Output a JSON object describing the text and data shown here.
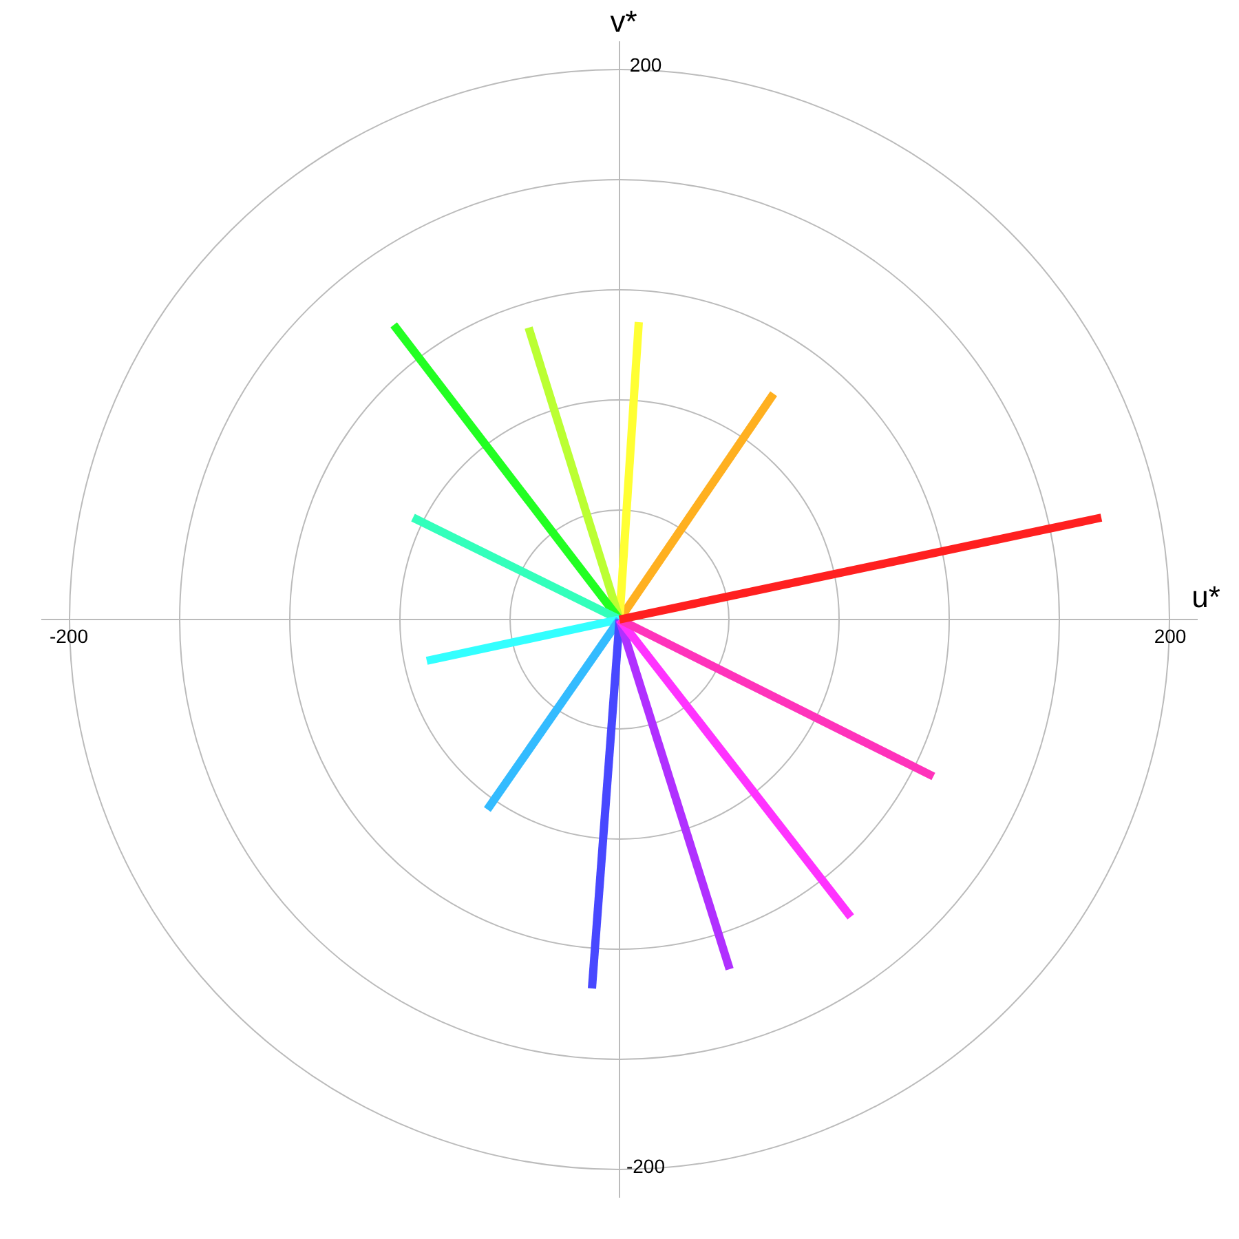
{
  "chart_data": {
    "type": "line",
    "xlabel": "u*",
    "ylabel": "v*",
    "xlim": [
      -210,
      210
    ],
    "ylim": [
      -210,
      210
    ],
    "xticks": [
      -200,
      200
    ],
    "yticks": [
      -200,
      200
    ],
    "legend": false,
    "marker": "none",
    "line_style": "solid",
    "series": [
      {
        "color": "#ff2020",
        "x": [
          0,
          175
        ],
        "values": [
          0,
          37
        ]
      },
      {
        "color": "#ff33bb",
        "x": [
          0,
          114
        ],
        "values": [
          0,
          -57
        ]
      },
      {
        "color": "#ff33ff",
        "x": [
          0,
          84
        ],
        "values": [
          0,
          -108
        ]
      },
      {
        "color": "#b030ff",
        "x": [
          0,
          40
        ],
        "values": [
          0,
          -127
        ]
      },
      {
        "color": "#4848ff",
        "x": [
          0,
          -10
        ],
        "values": [
          0,
          -134
        ]
      },
      {
        "color": "#33bbff",
        "x": [
          0,
          -48
        ],
        "values": [
          0,
          -69
        ]
      },
      {
        "color": "#33ffff",
        "x": [
          0,
          -70
        ],
        "values": [
          0,
          -15
        ]
      },
      {
        "color": "#33ffbb",
        "x": [
          0,
          -75
        ],
        "values": [
          0,
          37
        ]
      },
      {
        "color": "#22ff22",
        "x": [
          0,
          -82
        ],
        "values": [
          0,
          107
        ]
      },
      {
        "color": "#bbff33",
        "x": [
          0,
          -33
        ],
        "values": [
          0,
          106
        ]
      },
      {
        "color": "#ffff33",
        "x": [
          0,
          7
        ],
        "values": [
          0,
          108
        ]
      },
      {
        "color": "#ffb020",
        "x": [
          0,
          56
        ],
        "values": [
          0,
          82
        ]
      }
    ]
  }
}
